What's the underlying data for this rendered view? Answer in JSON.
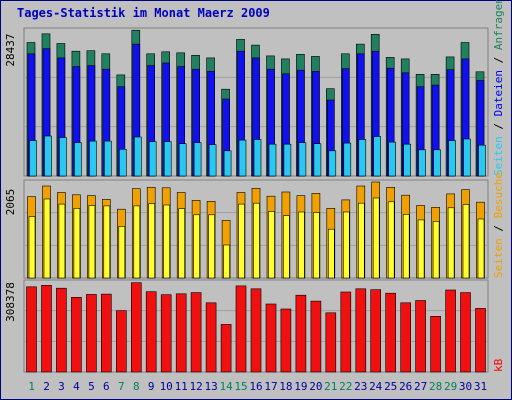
{
  "chart_data": {
    "type": "bar",
    "title": "Tages-Statistik im Monat Maerz 2009",
    "categories": [
      "1",
      "2",
      "3",
      "4",
      "5",
      "6",
      "7",
      "8",
      "9",
      "10",
      "11",
      "12",
      "13",
      "14",
      "15",
      "16",
      "17",
      "18",
      "19",
      "20",
      "21",
      "22",
      "23",
      "24",
      "25",
      "26",
      "27",
      "28",
      "29",
      "30",
      "31"
    ],
    "weekend_days": [
      "1",
      "7",
      "8",
      "14",
      "15",
      "21",
      "22",
      "28",
      "29"
    ],
    "colors": {
      "background": "#c0c0c0",
      "border": "#000080",
      "title": "#0000c0",
      "anfragen": "#208060",
      "dateien": "#1010f0",
      "seiten_top": "#28c8f0",
      "besuche": "#f0a000",
      "seiten_mid": "#ffff30",
      "kb": "#f01010",
      "weekday_label": "#0000a0",
      "weekend_label": "#00805c",
      "label_text": "#000000",
      "anfragen_label": "#208060",
      "dateien_label": "#0000f0",
      "seiten_label": "#28c8f0",
      "besuche_label": "#f0a000",
      "kb_label": "#ff0000",
      "slash": "#000000"
    },
    "panels": [
      {
        "id": "top",
        "max_label": "28437",
        "ymax": 28437,
        "right_label": [
          "Seiten",
          "Dateien",
          "Anfragen"
        ],
        "series": [
          {
            "name": "Anfragen",
            "values": [
              26000,
              27700,
              25800,
              24300,
              24400,
              23800,
              19700,
              28400,
              23800,
              24200,
              24000,
              23500,
              23000,
              16900,
              26600,
              25500,
              23400,
              22800,
              23700,
              23300,
              17000,
              23800,
              25700,
              27600,
              23100,
              22800,
              19800,
              19800,
              23200,
              26000,
              20300
            ]
          },
          {
            "name": "Dateien",
            "values": [
              23800,
              24800,
              23000,
              21300,
              21500,
              20800,
              17400,
              25700,
              21500,
              22000,
              21300,
              20800,
              20400,
              15000,
              24300,
              23000,
              20800,
              19900,
              20600,
              20400,
              14800,
              20900,
              23800,
              24300,
              21000,
              20100,
              17400,
              17700,
              20700,
              22800,
              18600
            ]
          },
          {
            "name": "Seiten",
            "values": [
              6900,
              7800,
              7500,
              6500,
              6800,
              6800,
              5200,
              7600,
              6700,
              6700,
              6300,
              6500,
              6100,
              4900,
              7000,
              7100,
              6200,
              6200,
              6500,
              6300,
              4900,
              6400,
              7100,
              7700,
              6600,
              6200,
              5100,
              5100,
              6900,
              7200,
              6000
            ]
          }
        ]
      },
      {
        "id": "mid",
        "max_label": "2065",
        "ymax": 2065,
        "right_label": [
          "Seiten",
          "Besuche"
        ],
        "series": [
          {
            "name": "Besuche",
            "values": [
              1750,
              1980,
              1840,
              1790,
              1770,
              1690,
              1480,
              1920,
              1950,
              1940,
              1840,
              1670,
              1650,
              1240,
              1840,
              1930,
              1760,
              1850,
              1770,
              1820,
              1500,
              1680,
              1980,
              2065,
              1950,
              1780,
              1560,
              1520,
              1810,
              1900,
              1630
            ]
          },
          {
            "name": "Seiten",
            "values": [
              1320,
              1700,
              1590,
              1500,
              1560,
              1550,
              1110,
              1550,
              1600,
              1570,
              1490,
              1360,
              1360,
              710,
              1590,
              1610,
              1430,
              1340,
              1420,
              1410,
              1050,
              1420,
              1610,
              1720,
              1640,
              1370,
              1250,
              1220,
              1510,
              1580,
              1270
            ]
          }
        ]
      },
      {
        "id": "bottom",
        "max_label": "308378",
        "ymax": 308378,
        "right_label": [
          "kB"
        ],
        "series": [
          {
            "name": "kB",
            "values": [
              292000,
              297000,
              287000,
              256000,
              266000,
              267000,
              210000,
              306000,
              275000,
              265000,
              268000,
              272000,
              237000,
              163000,
              295000,
              285000,
              233000,
              216000,
              263000,
              243000,
              203000,
              274000,
              285000,
              282000,
              270000,
              237000,
              245000,
              191000,
              281000,
              272000,
              218000
            ]
          }
        ]
      }
    ]
  }
}
